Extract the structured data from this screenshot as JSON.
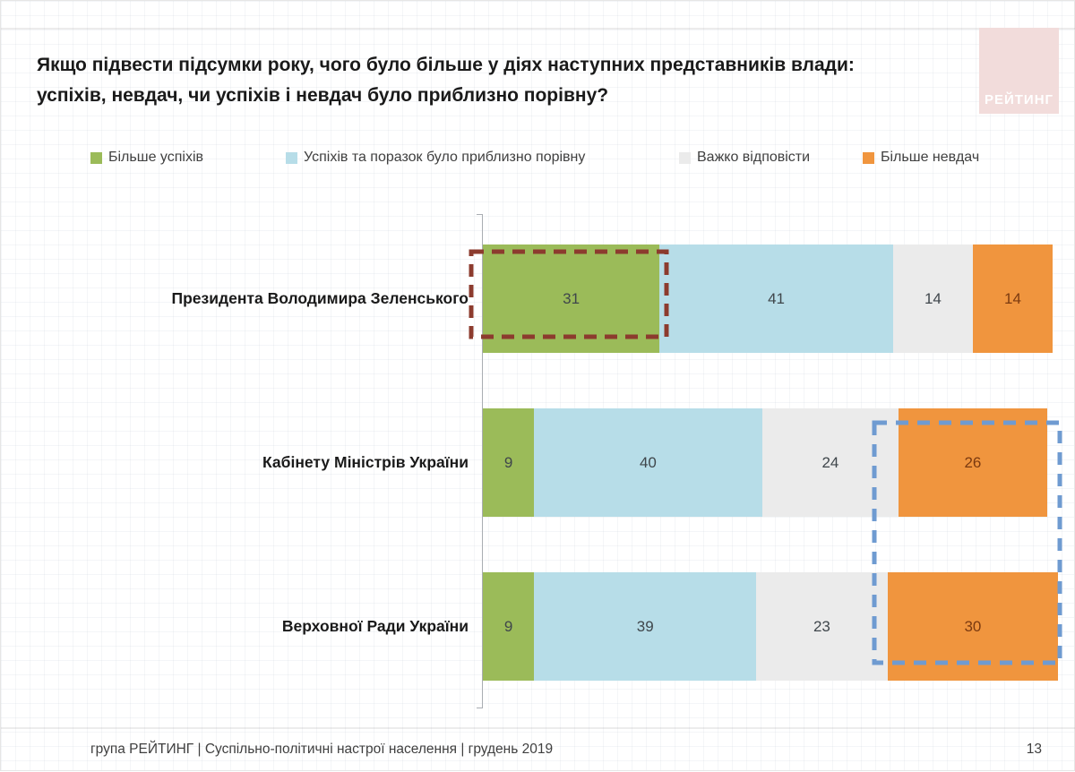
{
  "slide": {
    "title_lines": [
      "Якщо підвести підсумки року, чого було більше у діях наступних представників влади:",
      "успіхів, невдач, чи успіхів і невдач було приблизно порівну?"
    ]
  },
  "logo": {
    "text": "РЕЙТИНГ",
    "bg": "#f2dcdb",
    "fg": "#ffffff"
  },
  "legend": [
    {
      "label": "Більше успіхів",
      "color": "#9bbb59"
    },
    {
      "label": "Успіхів та поразок було приблизно порівну",
      "color": "#b7dde8"
    },
    {
      "label": "Важко відповісти",
      "color": "#ebebeb"
    },
    {
      "label": "Більше невдач",
      "color": "#f0953e"
    }
  ],
  "chart_data": {
    "type": "bar",
    "orientation": "horizontal",
    "stacked": true,
    "unit": "percent",
    "xlim": [
      0,
      100
    ],
    "grid": false,
    "legend_position": "top",
    "categories": [
      "Президента Володимира Зеленського",
      "Кабінету Міністрів України",
      "Верховної Ради України"
    ],
    "series": [
      {
        "name": "Більше успіхів",
        "color": "#9bbb59",
        "values": [
          31,
          9,
          9
        ]
      },
      {
        "name": "Успіхів та поразок було приблизно порівну",
        "color": "#b7dde8",
        "values": [
          41,
          40,
          39
        ]
      },
      {
        "name": "Важко відповісти",
        "color": "#ebebeb",
        "values": [
          14,
          24,
          23
        ]
      },
      {
        "name": "Більше невдач",
        "color": "#f0953e",
        "values": [
          14,
          26,
          30
        ]
      }
    ],
    "annotations": [
      {
        "target": "Президента Володимира Зеленського / Більше успіхів (31)",
        "style": "dashed-box",
        "color": "#8c3b2e"
      },
      {
        "target": "Кабінету Міністрів (26) та Верховної Ради (30) / Більше невдач",
        "style": "dashed-box",
        "color": "#6f9bd1"
      }
    ]
  },
  "highlights": {
    "president_success_box": {
      "color": "#8c3b2e"
    },
    "failures_box": {
      "color": "#6f9bd1"
    }
  },
  "footer": {
    "source": "група РЕЙТИНГ | Суспільно-політичні настрої населення  | грудень 2019",
    "page": "13"
  }
}
